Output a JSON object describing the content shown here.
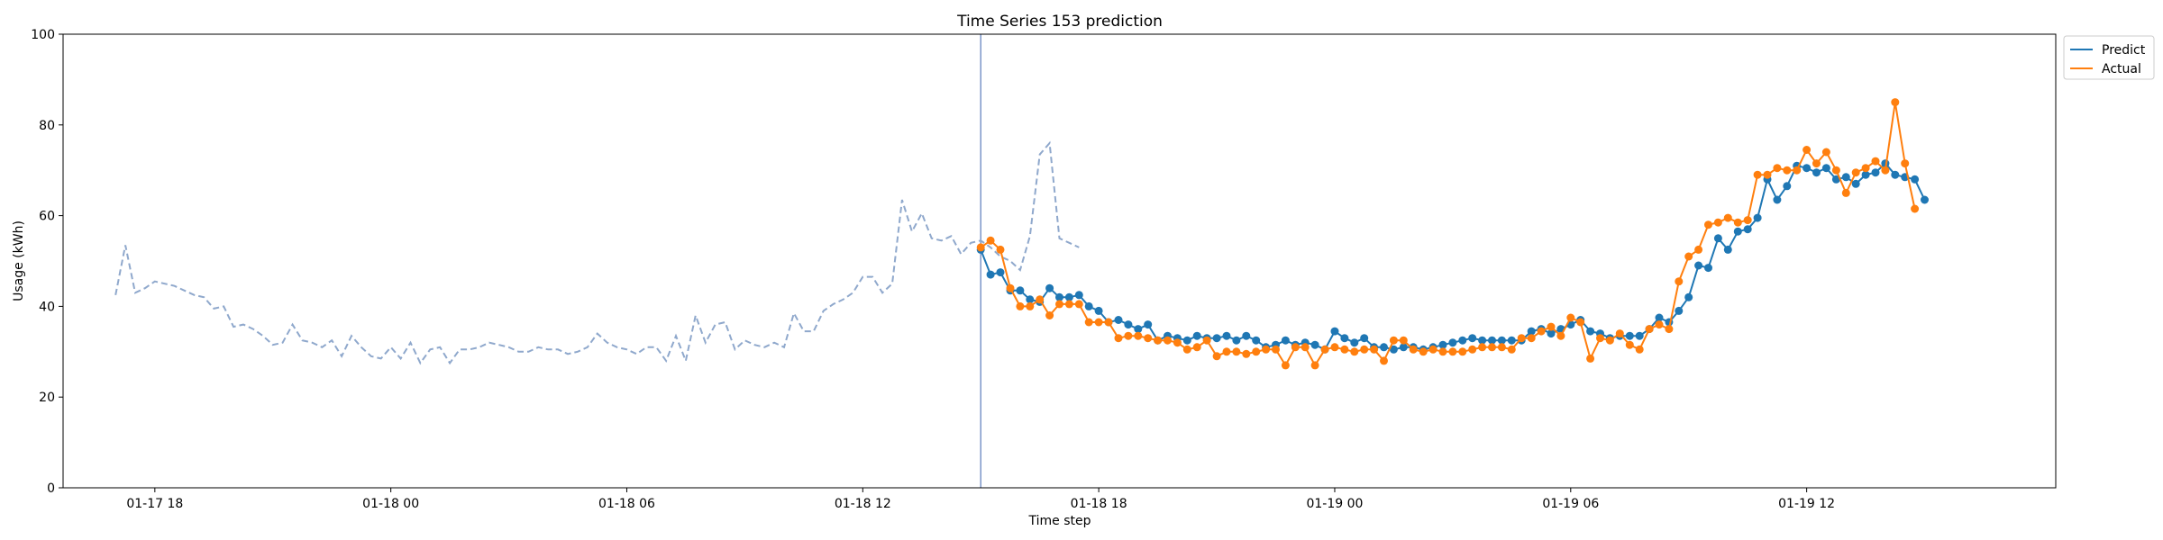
{
  "chart_data": {
    "type": "line",
    "title": "Time Series 153 prediction",
    "xlabel": "Time step",
    "ylabel": "Usage (kWh)",
    "ylim": [
      0,
      100
    ],
    "yticks": [
      0,
      20,
      40,
      60,
      80,
      100
    ],
    "xlim": [
      "2024-01-17 15:40",
      "2024-01-19 18:20"
    ],
    "xticks": [
      {
        "t": "2024-01-17 18:00",
        "label": "01-17 18"
      },
      {
        "t": "2024-01-18 00:00",
        "label": "01-18 00"
      },
      {
        "t": "2024-01-18 06:00",
        "label": "01-18 06"
      },
      {
        "t": "2024-01-18 12:00",
        "label": "01-18 12"
      },
      {
        "t": "2024-01-18 18:00",
        "label": "01-18 18"
      },
      {
        "t": "2024-01-19 00:00",
        "label": "01-19 00"
      },
      {
        "t": "2024-01-19 06:00",
        "label": "01-19 06"
      },
      {
        "t": "2024-01-19 12:00",
        "label": "01-19 12"
      }
    ],
    "step_minutes": 15,
    "forecast_start": "2024-01-18 15:00",
    "grid": false,
    "legend": "top-right outside",
    "series": [
      {
        "name": "history",
        "style": "dashed",
        "color": "#8fa8cc",
        "start": "2024-01-17 17:00",
        "values": [
          42.5,
          53.5,
          43,
          44,
          45.5,
          45,
          44.5,
          43.5,
          42.5,
          42,
          39.5,
          40,
          35.5,
          36,
          35,
          33.5,
          31.5,
          32,
          36,
          32.5,
          32,
          31,
          32.5,
          29,
          33.5,
          31,
          29,
          28.5,
          31,
          28.5,
          32,
          27.5,
          30.5,
          31,
          27.5,
          30.5,
          30.5,
          31,
          32,
          31.5,
          31,
          30,
          30,
          31,
          30.5,
          30.5,
          29.5,
          30,
          31,
          34,
          32,
          31,
          30.5,
          29.5,
          31,
          31,
          28,
          33.5,
          28,
          38,
          32,
          36,
          36.5,
          30.5,
          32.5,
          31.5,
          31,
          32,
          31,
          38.5,
          34.5,
          34.5,
          39,
          40.5,
          41.5,
          43,
          46.5,
          46.5,
          43,
          45,
          63.5,
          56.5,
          60.5,
          55,
          54.5,
          55.5,
          51.5,
          54,
          54.5,
          53,
          51,
          50,
          48,
          55.5,
          73.5,
          76,
          55,
          54,
          53
        ]
      },
      {
        "name": "Predict",
        "style": "solid-markers",
        "color": "#1f77b4",
        "start": "2024-01-18 15:00",
        "values": [
          52.5,
          47,
          47.5,
          43.5,
          43.5,
          41.5,
          41,
          44,
          42,
          42,
          42.5,
          40,
          39,
          36.5,
          37,
          36,
          35,
          36,
          32.5,
          33.5,
          33,
          32.5,
          33.5,
          33,
          33,
          33.5,
          32.5,
          33.5,
          32.5,
          31,
          31.5,
          32.5,
          31.5,
          32,
          31.5,
          30.5,
          34.5,
          33,
          32,
          33,
          31,
          31,
          30.5,
          31,
          31,
          30.5,
          31,
          31.5,
          32,
          32.5,
          33,
          32.5,
          32.5,
          32.5,
          32.5,
          32.5,
          34.5,
          35,
          34,
          35,
          36,
          37,
          34.5,
          34,
          33,
          33.5,
          33.5,
          33.5,
          35,
          37.5,
          36.5,
          39,
          42,
          49,
          48.5,
          55,
          52.5,
          56.5,
          57,
          59.5,
          68,
          63.5,
          66.5,
          71,
          70.5,
          69.5,
          70.5,
          68,
          68.5,
          67,
          69,
          69.5,
          71.5,
          69,
          68.5,
          68,
          63.5
        ]
      },
      {
        "name": "Actual",
        "style": "solid-markers",
        "color": "#ff7f0e",
        "start": "2024-01-18 15:00",
        "values": [
          53,
          54.5,
          52.5,
          44,
          40,
          40,
          41.5,
          38,
          40.5,
          40.5,
          40.5,
          36.5,
          36.5,
          36.5,
          33,
          33.5,
          33.5,
          33,
          32.5,
          32.5,
          32,
          30.5,
          31,
          32.5,
          29,
          30,
          30,
          29.5,
          30,
          30.5,
          30.5,
          27,
          31,
          31,
          27,
          30.5,
          31,
          30.5,
          30,
          30.5,
          30.5,
          28,
          32.5,
          32.5,
          30.5,
          30,
          30.5,
          30,
          30,
          30,
          30.5,
          31,
          31,
          31,
          30.5,
          33,
          33,
          34.5,
          35.5,
          33.5,
          37.5,
          36.5,
          28.5,
          33,
          32.5,
          34,
          31.5,
          30.5,
          35,
          36,
          35,
          45.5,
          51,
          52.5,
          58,
          58.5,
          59.5,
          58.5,
          59,
          69,
          69,
          70.5,
          70,
          70,
          74.5,
          71.5,
          74,
          70,
          65,
          69.5,
          70.5,
          72,
          70,
          85,
          71.5,
          61.5
        ]
      }
    ],
    "legend_entries": [
      {
        "label": "Predict",
        "color": "#1f77b4"
      },
      {
        "label": "Actual",
        "color": "#ff7f0e"
      }
    ],
    "divider_color": "#7b96c8"
  }
}
